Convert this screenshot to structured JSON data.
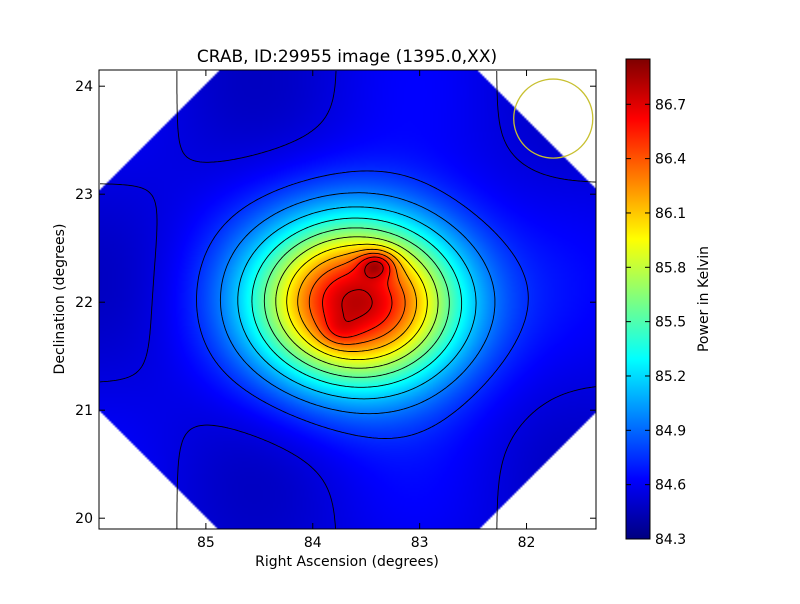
{
  "chart_data": {
    "type": "heatmap",
    "title": "CRAB, ID:29955 image (1395.0,XX)",
    "xlabel": "Right Ascension (degrees)",
    "ylabel": "Declination (degrees)",
    "xlim": [
      86.0,
      81.35
    ],
    "ylim": [
      19.9,
      24.15
    ],
    "x_ticks": [
      85,
      84,
      83,
      82
    ],
    "y_ticks": [
      20,
      21,
      22,
      23,
      24
    ],
    "colorbar": {
      "label": "Power in Kelvin",
      "range": [
        84.3,
        86.95
      ],
      "ticks": [
        "84.3",
        "84.6",
        "84.9",
        "85.2",
        "85.5",
        "85.8",
        "86.1",
        "86.4",
        "86.7"
      ],
      "colormap": "jet"
    },
    "background_level": 84.55,
    "sources": [
      {
        "ra": 83.4,
        "dec": 22.35,
        "peak": 86.95,
        "sigma_ra": 0.12,
        "sigma_dec": 0.09
      },
      {
        "ra": 83.75,
        "dec": 21.72,
        "peak": 86.6,
        "sigma_ra": 0.13,
        "sigma_dec": 0.1
      },
      {
        "ra": 83.6,
        "dec": 22.0,
        "peak": 86.5,
        "sigma_ra": 0.45,
        "sigma_dec": 0.38
      }
    ],
    "extended_source": {
      "ra": 83.55,
      "dec": 22.0,
      "amplitude": 2.2,
      "sigma_ra": 0.68,
      "sigma_dec": 0.55
    },
    "contour_levels": [
      84.55,
      84.75,
      84.95,
      85.15,
      85.35,
      85.55,
      85.75,
      85.95,
      86.15,
      86.35,
      86.55,
      86.75
    ],
    "beam_circle": {
      "ra": 81.75,
      "dec": 23.7,
      "radius_deg": 0.37,
      "color": "#c8c030"
    },
    "colors": {
      "background": "#ffffff",
      "frame": "#000000",
      "contour": "#000000"
    }
  }
}
